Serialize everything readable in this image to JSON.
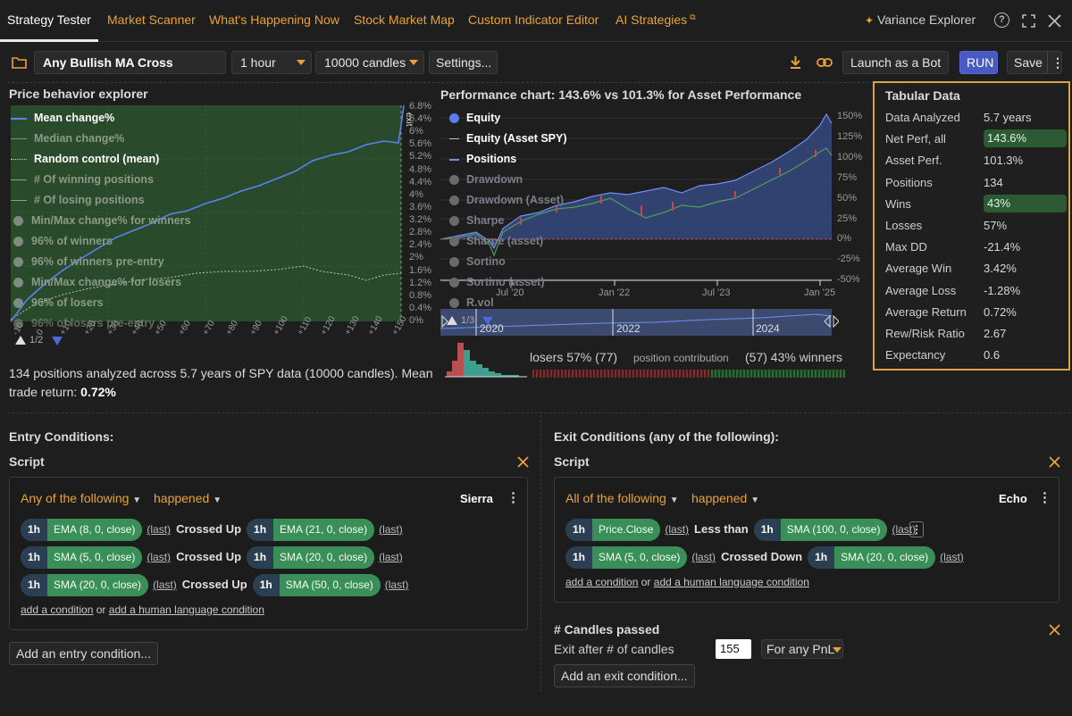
{
  "nav": {
    "tabs": [
      "Strategy Tester",
      "Market Scanner",
      "What's Happening Now",
      "Stock Market Map",
      "Custom Indicator Editor",
      "AI Strategies"
    ],
    "variance": "Variance Explorer"
  },
  "toolbar": {
    "strategy_name": "Any Bullish MA Cross",
    "timeframe": "1 hour",
    "candles": "10000 candles",
    "settings": "Settings...",
    "launch": "Launch as a Bot",
    "run": "RUN",
    "save": "Save"
  },
  "price_explorer": {
    "title": "Price behavior explorer",
    "legend": [
      {
        "label": "Mean change%",
        "active": true
      },
      {
        "label": "Median change%",
        "active": false
      },
      {
        "label": "Random control (mean)",
        "active": true
      },
      {
        "label": "# Of winning positions",
        "active": false
      },
      {
        "label": "# Of losing positions",
        "active": false
      },
      {
        "label": "Min/Max change% for winners",
        "active": false
      },
      {
        "label": "96% of winners",
        "active": false
      },
      {
        "label": "96% of winners pre-entry",
        "active": false
      },
      {
        "label": "Min/Max change% for losers",
        "active": false
      },
      {
        "label": "96% of losers",
        "active": false
      },
      {
        "label": "96% of losers pre-entry",
        "active": false
      }
    ],
    "y_ticks": [
      "6.8%",
      "6.4%",
      "6%",
      "5.6%",
      "5.2%",
      "4.8%",
      "4.4%",
      "4%",
      "3.6%",
      "3.2%",
      "2.8%",
      "2.4%",
      "2%",
      "1.6%",
      "1.2%",
      "0.8%",
      "0.4%",
      "0%"
    ],
    "x_ticks": [
      "-10",
      "0",
      "+10",
      "+20",
      "+30",
      "+40",
      "+50",
      "+60",
      "+70",
      "+80",
      "+90",
      "+100",
      "+110",
      "+120",
      "+130",
      "+140",
      "+150"
    ],
    "exit_label": "exit",
    "mini_label": "1/2",
    "summary_pre": "134 positions analyzed across 5.7 years of SPY data (10000 candles). Mean trade return: ",
    "summary_bold": "0.72%"
  },
  "performance": {
    "title": "Performance chart: 143.6% vs 101.3% for Asset Performance",
    "legend": [
      {
        "label": "Equity",
        "active": true
      },
      {
        "label": "Equity (Asset SPY)",
        "active": true
      },
      {
        "label": "Positions",
        "active": true
      },
      {
        "label": "Drawdown",
        "active": false
      },
      {
        "label": "Drawdown (Asset)",
        "active": false
      },
      {
        "label": "Sharpe",
        "active": false
      },
      {
        "label": "Sharpe (asset)",
        "active": false
      },
      {
        "label": "Sortino",
        "active": false
      },
      {
        "label": "Sortino (asset)",
        "active": false
      },
      {
        "label": "R.vol",
        "active": false
      }
    ],
    "y_ticks": [
      "150%",
      "125%",
      "100%",
      "75%",
      "50%",
      "25%",
      "0%",
      "-25%",
      "-50%"
    ],
    "x_ticks": [
      "Jul '20",
      "Jan '22",
      "Jul '23",
      "Jan '25"
    ],
    "nav_years": [
      "2020",
      "2022",
      "2024"
    ],
    "mini_label": "1/3",
    "losers": "losers 57% (77)",
    "contribution": "position contribution",
    "winners": "(57) 43% winners"
  },
  "chart_data": [
    {
      "type": "line",
      "title": "Price behavior explorer",
      "x": [
        -10,
        0,
        10,
        20,
        30,
        40,
        50,
        60,
        70,
        80,
        90,
        100,
        110,
        120,
        130,
        140,
        150,
        155
      ],
      "series": [
        {
          "name": "Mean change%",
          "values": [
            0,
            0.3,
            0.6,
            1.0,
            1.4,
            1.8,
            2.2,
            2.6,
            3.0,
            3.4,
            3.8,
            4.2,
            4.6,
            4.9,
            5.2,
            5.4,
            5.6,
            6.8
          ]
        },
        {
          "name": "Random control (mean)",
          "values": [
            0,
            0.2,
            0.4,
            0.6,
            0.8,
            1.0,
            1.1,
            1.2,
            1.3,
            1.4,
            1.4,
            1.5,
            1.5,
            1.6,
            1.4,
            1.6,
            1.4,
            1.5
          ]
        }
      ],
      "ylim": [
        0,
        6.8
      ]
    },
    {
      "type": "line",
      "title": "Performance chart: 143.6% vs 101.3% for Asset Performance",
      "x": [
        "Jan '20",
        "Jul '20",
        "Jan '21",
        "Jul '21",
        "Jan '22",
        "Jul '22",
        "Jan '23",
        "Jul '23",
        "Jan '24",
        "Jul '24",
        "Jan '25",
        "Mar '25"
      ],
      "series": [
        {
          "name": "Equity",
          "values": [
            0,
            12,
            30,
            55,
            58,
            50,
            62,
            80,
            95,
            120,
            140,
            143.6
          ]
        },
        {
          "name": "Equity (Asset SPY)",
          "values": [
            0,
            8,
            22,
            40,
            45,
            20,
            30,
            48,
            60,
            80,
            95,
            101.3
          ]
        }
      ],
      "ylim": [
        -50,
        150
      ]
    }
  ],
  "tabular": {
    "title": "Tabular Data",
    "rows": [
      {
        "label": "Data Analyzed",
        "value": "5.7 years",
        "highlight": false
      },
      {
        "label": "Net Perf, all",
        "value": "143.6%",
        "highlight": true
      },
      {
        "label": "Asset Perf.",
        "value": "101.3%",
        "highlight": false
      },
      {
        "label": "Positions",
        "value": "134",
        "highlight": false
      },
      {
        "label": "Wins",
        "value": "43%",
        "highlight": true
      },
      {
        "label": "Losses",
        "value": "57%",
        "highlight": false
      },
      {
        "label": "Max DD",
        "value": "-21.4%",
        "highlight": false
      },
      {
        "label": "Average Win",
        "value": "3.42%",
        "highlight": false
      },
      {
        "label": "Average Loss",
        "value": "-1.28%",
        "highlight": false
      },
      {
        "label": "Average Return",
        "value": "0.72%",
        "highlight": false
      },
      {
        "label": "Rew/Risk Ratio",
        "value": "2.67",
        "highlight": false
      },
      {
        "label": "Expectancy",
        "value": "0.6",
        "highlight": false
      }
    ]
  },
  "entry": {
    "title": "Entry Conditions:",
    "script_label": "Script",
    "group": "Any of the following",
    "happened": "happened",
    "name": "Sierra",
    "rows": [
      {
        "tf": "1h",
        "a": "EMA (8, 0, close)",
        "last1": "(last)",
        "op": "Crossed Up",
        "tf2": "1h",
        "b": "EMA (21, 0, close)",
        "last2": "(last)"
      },
      {
        "tf": "1h",
        "a": "SMA (5, 0, close)",
        "last1": "(last)",
        "op": "Crossed Up",
        "tf2": "1h",
        "b": "SMA (20, 0, close)",
        "last2": "(last)"
      },
      {
        "tf": "1h",
        "a": "SMA (20, 0, close)",
        "last1": "(last)",
        "op": "Crossed Up",
        "tf2": "1h",
        "b": "SMA (50, 0, close)",
        "last2": "(last)"
      }
    ],
    "add_condition": "add a condition",
    "or": "or",
    "add_human": "add a human language condition",
    "add_entry": "Add an entry condition..."
  },
  "exit": {
    "title": "Exit Conditions (any of the following):",
    "script_label": "Script",
    "group": "All of the following",
    "happened": "happened",
    "name": "Echo",
    "rows": [
      {
        "tf": "1h",
        "a": "Price.Close",
        "last1": "(last)",
        "op": "Less than",
        "tf2": "1h",
        "b": "SMA (100, 0, close)",
        "last2": "(last)"
      },
      {
        "tf": "1h",
        "a": "SMA (5, 0, close)",
        "last1": "(last)",
        "op": "Crossed Down",
        "tf2": "1h",
        "b": "SMA (20, 0, close)",
        "last2": "(last)"
      }
    ],
    "add_condition": "add a condition",
    "or": "or",
    "add_human": "add a human language condition",
    "candles_title": "# Candles passed",
    "exit_after": "Exit after # of candles",
    "candles_value": "155",
    "pnl": "For any PnL",
    "add_exit": "Add an exit condition..."
  }
}
